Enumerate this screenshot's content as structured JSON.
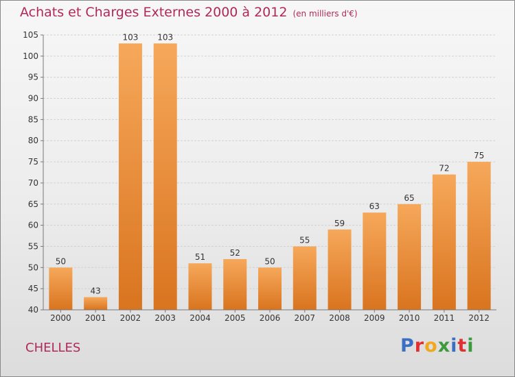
{
  "header": {
    "title": "Achats et Charges Externes 2000 à 2012",
    "unit": "(en milliers d'€)"
  },
  "footer": {
    "city": "CHELLES",
    "logo": "Proxiti"
  },
  "colors": {
    "title": "#b0285a",
    "bar_light": "#f6a85a",
    "bar_dark": "#d9741f",
    "logo_letters": [
      "#3a6fc4",
      "#e0302f",
      "#f2a81d",
      "#3c9a3c",
      "#3a6fc4",
      "#e0302f",
      "#3c9a3c"
    ]
  },
  "chart_data": {
    "type": "bar",
    "categories": [
      "2000",
      "2001",
      "2002",
      "2003",
      "2004",
      "2005",
      "2006",
      "2007",
      "2008",
      "2009",
      "2010",
      "2011",
      "2012"
    ],
    "values": [
      50,
      43,
      103,
      103,
      51,
      52,
      50,
      55,
      59,
      63,
      65,
      72,
      75
    ],
    "title": "Achats et Charges Externes 2000 à 2012",
    "ylabel": "",
    "xlabel": "",
    "ylim": [
      40,
      105
    ],
    "yticks": [
      40,
      45,
      50,
      55,
      60,
      65,
      70,
      75,
      80,
      85,
      90,
      95,
      100,
      105
    ],
    "grid": true,
    "data_labels": true
  }
}
